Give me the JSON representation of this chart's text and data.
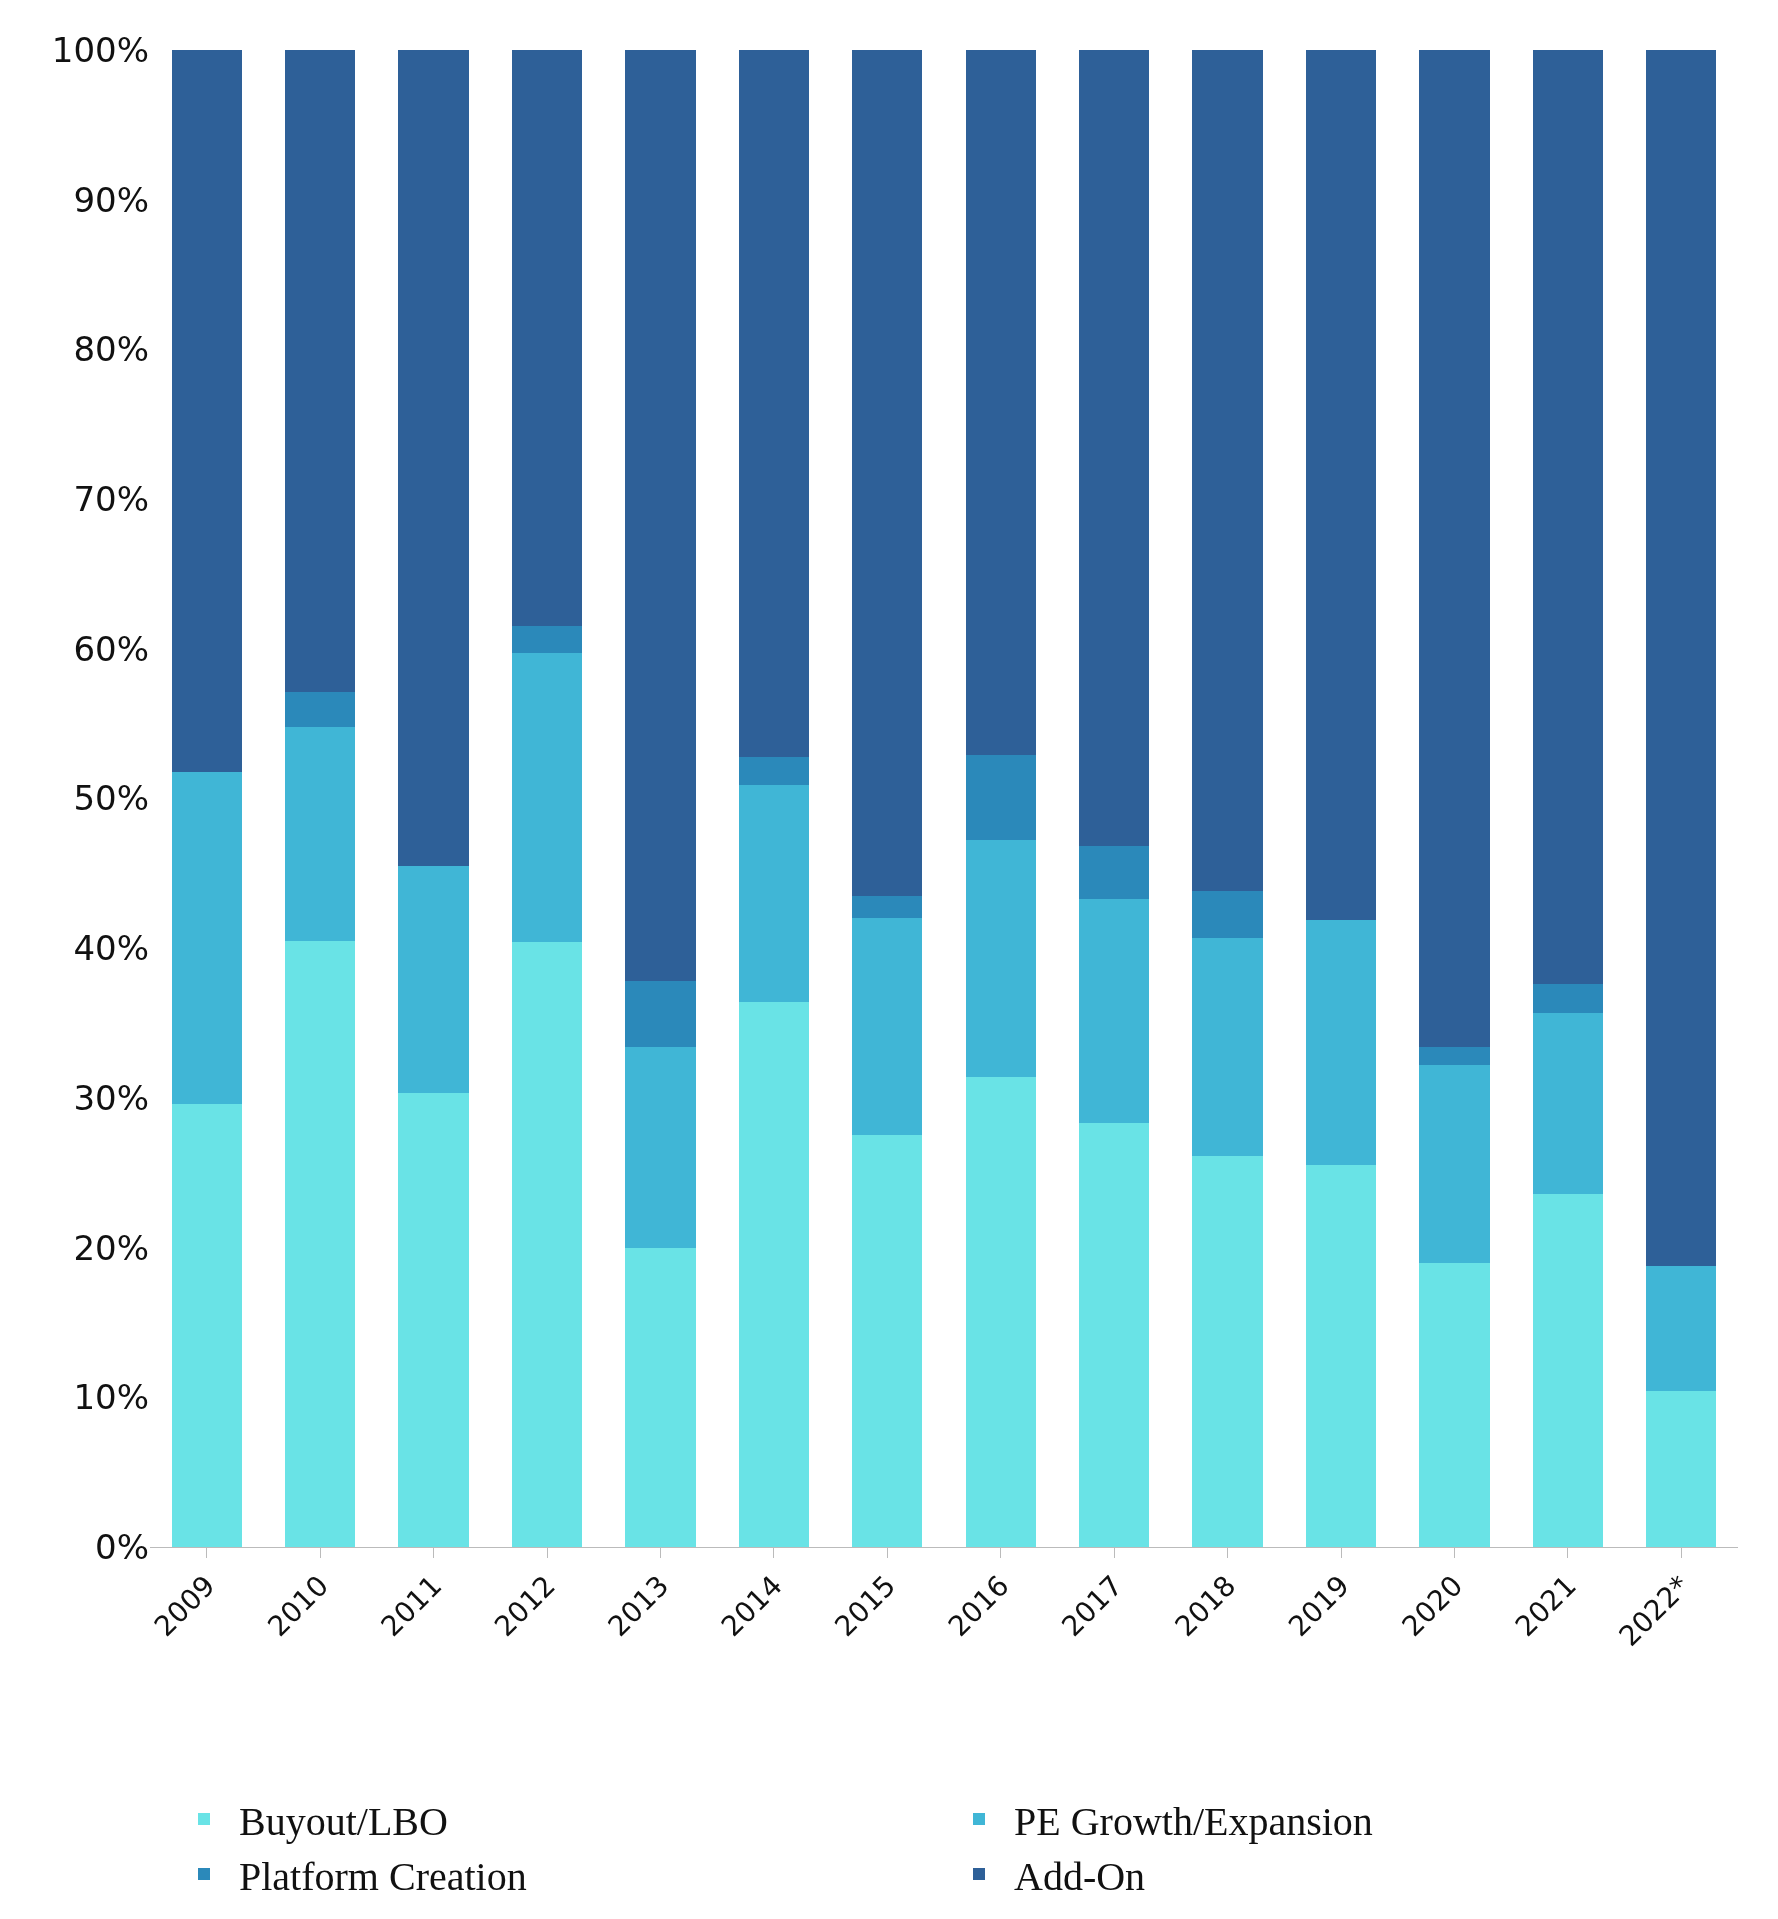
{
  "chart_data": {
    "type": "bar",
    "stacked": true,
    "categories": [
      "2009",
      "2010",
      "2011",
      "2012",
      "2013",
      "2014",
      "2015",
      "2016",
      "2017",
      "2018",
      "2019",
      "2020",
      "2021",
      "2022*"
    ],
    "series": [
      {
        "name": "Buyout/LBO",
        "color": "#69e3e6",
        "values": [
          29.6,
          40.5,
          30.3,
          40.4,
          20.0,
          36.4,
          27.5,
          31.4,
          28.3,
          26.1,
          25.5,
          19.0,
          23.6,
          10.4
        ]
      },
      {
        "name": "PE Growth/Expansion",
        "color": "#40b6d6",
        "values": [
          22.2,
          14.3,
          15.2,
          19.3,
          13.4,
          14.5,
          14.5,
          15.8,
          15.0,
          14.6,
          16.4,
          13.2,
          12.1,
          8.4
        ]
      },
      {
        "name": "Platform Creation",
        "color": "#2b89ba",
        "values": [
          0,
          2.3,
          0,
          1.8,
          4.4,
          1.9,
          1.5,
          5.7,
          3.5,
          3.1,
          0,
          1.2,
          1.9,
          0
        ]
      },
      {
        "name": "Add-On",
        "color": "#2e6098",
        "values": [
          48.2,
          42.9,
          54.5,
          38.5,
          62.2,
          47.2,
          56.5,
          47.1,
          53.2,
          56.2,
          58.1,
          66.6,
          62.4,
          81.2
        ]
      }
    ],
    "ylim": [
      0,
      100
    ],
    "yticks": [
      {
        "value": 0,
        "label": "0%"
      },
      {
        "value": 10,
        "label": "10%"
      },
      {
        "value": 20,
        "label": "20%"
      },
      {
        "value": 30,
        "label": "30%"
      },
      {
        "value": 40,
        "label": "40%"
      },
      {
        "value": 50,
        "label": "50%"
      },
      {
        "value": 60,
        "label": "60%"
      },
      {
        "value": 70,
        "label": "70%"
      },
      {
        "value": 80,
        "label": "80%"
      },
      {
        "value": 90,
        "label": "90%"
      },
      {
        "value": 100,
        "label": "100%"
      }
    ],
    "legend": "bottom"
  }
}
